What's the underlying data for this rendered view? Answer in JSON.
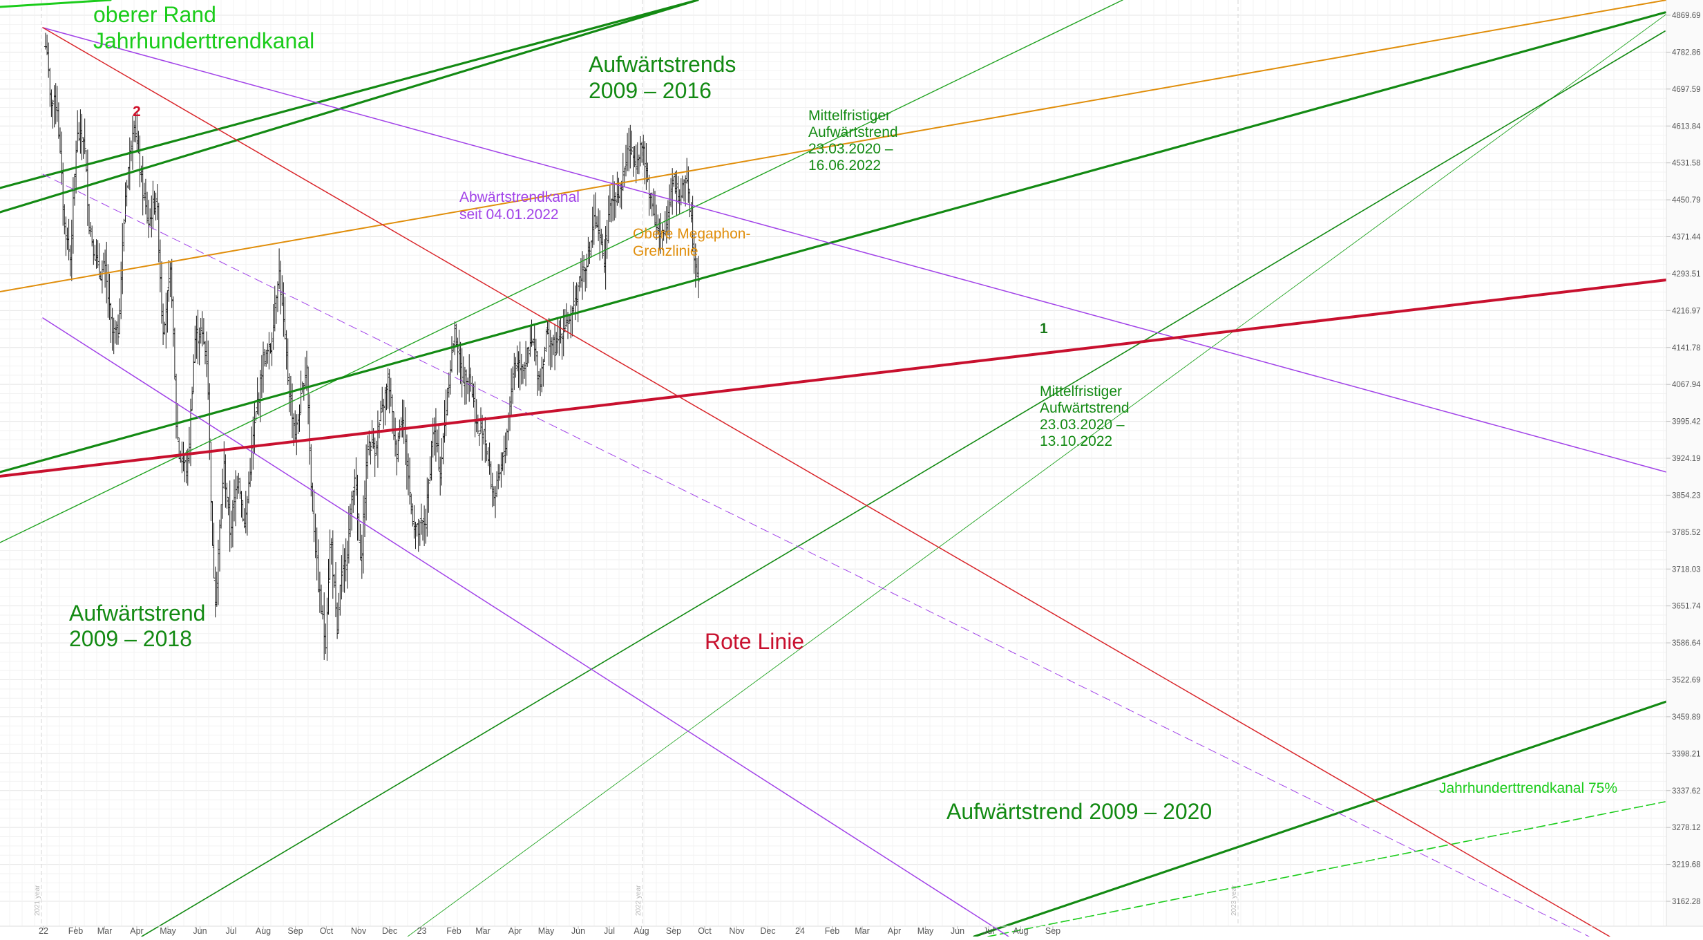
{
  "chart_data": {
    "type": "line",
    "subtype": "ohlc-price-chart-with-trendlines",
    "grid": true,
    "y_scale": "log",
    "y_tick_labels": [
      "4869.69",
      "4782.86",
      "4697.59",
      "4613.84",
      "4531.58",
      "4450.79",
      "4371.44",
      "4293.51",
      "4216.97",
      "4141.78",
      "4067.94",
      "3995.42",
      "3924.19",
      "3854.23",
      "3785.52",
      "3718.03",
      "3651.74",
      "3586.64",
      "3522.69",
      "3459.89",
      "3398.21",
      "3337.62",
      "3278.12",
      "3219.68",
      "3162.28"
    ],
    "x_tick_labels": [
      "22",
      "Feb",
      "Mar",
      "Apr",
      "May",
      "Jun",
      "Jul",
      "Aug",
      "Sep",
      "Oct",
      "Nov",
      "Dec",
      "23",
      "Feb",
      "Mar",
      "Apr",
      "May",
      "Jun",
      "Jul",
      "Aug",
      "Sep",
      "Oct",
      "Nov",
      "Dec",
      "24",
      "Feb",
      "Mar",
      "Apr",
      "May",
      "Jun",
      "Jul",
      "Aug",
      "Sep"
    ],
    "year_separators": [
      "2021 year",
      "2022 year",
      "2023 year"
    ],
    "colors": {
      "grid": "#ececec",
      "price": "#1a1a1a",
      "green_bright": "#1bcc1b",
      "green_dark": "#138a13",
      "green_mid": "#22a322",
      "orange": "#e08e0b",
      "purple": "#a142e8",
      "red": "#d9252a",
      "crimson": "#c8102e",
      "marker_red": "#d0102a",
      "marker_green": "#1a7a1a"
    },
    "annotations": [
      {
        "id": "oberer-rand",
        "lines": [
          "oberer Rand",
          "Jahrhunderttrendkanal"
        ],
        "color": "#1bcc1b"
      },
      {
        "id": "aufwaertstrends-2009-2016",
        "lines": [
          "Aufwärtstrends",
          "2009 – 2016"
        ],
        "color": "#138a13"
      },
      {
        "id": "mittelfristiger-16-06",
        "lines": [
          "Mittelfristiger",
          "Aufwärtstrend",
          "23.03.2020 –",
          "16.06.2022"
        ],
        "color": "#138a13"
      },
      {
        "id": "abwaertstrendkanal",
        "lines": [
          "Abwärtstrendkanal",
          "seit 04.01.2022"
        ],
        "color": "#a142e8"
      },
      {
        "id": "obere-megaphon",
        "lines": [
          "Obere Megaphon-",
          "Grenzlinie"
        ],
        "color": "#e08e0b"
      },
      {
        "id": "mittelfristiger-13-10",
        "lines": [
          "Mittelfristiger",
          "Aufwärtstrend",
          "23.03.2020 –",
          "13.10.2022"
        ],
        "color": "#138a13"
      },
      {
        "id": "aufwaertstrend-2009-2018",
        "lines": [
          "Aufwärtstrend",
          "2009 – 2018"
        ],
        "color": "#138a13"
      },
      {
        "id": "rote-linie",
        "lines": [
          "Rote Linie"
        ],
        "color": "#c8102e"
      },
      {
        "id": "aufwaertstrend-2009-2020",
        "lines": [
          "Aufwärtstrend 2009 – 2020"
        ],
        "color": "#138a13"
      },
      {
        "id": "jahrhunderttrendkanal-75",
        "lines": [
          "Jahrhunderttrendkanal 75%"
        ],
        "color": "#1bcc1b"
      }
    ],
    "markers": [
      {
        "id": "marker-2",
        "text": "2",
        "color": "#d0102a"
      },
      {
        "id": "marker-1",
        "text": "1",
        "color": "#1a7a1a"
      }
    ],
    "price_path": [
      [
        "2022-01-03",
        4796
      ],
      [
        "2022-01-04",
        4805
      ],
      [
        "2022-01-07",
        4677
      ],
      [
        "2022-01-14",
        4662
      ],
      [
        "2022-01-21",
        4398
      ],
      [
        "2022-01-27",
        4326
      ],
      [
        "2022-02-02",
        4590
      ],
      [
        "2022-02-09",
        4587
      ],
      [
        "2022-02-14",
        4402
      ],
      [
        "2022-02-18",
        4350
      ],
      [
        "2022-02-24",
        4290
      ],
      [
        "2022-03-01",
        4307
      ],
      [
        "2022-03-08",
        4171
      ],
      [
        "2022-03-14",
        4173
      ],
      [
        "2022-03-21",
        4461
      ],
      [
        "2022-03-29",
        4632
      ],
      [
        "2022-04-06",
        4481
      ],
      [
        "2022-04-12",
        4397
      ],
      [
        "2022-04-20",
        4460
      ],
      [
        "2022-04-26",
        4176
      ],
      [
        "2022-05-04",
        4300
      ],
      [
        "2022-05-09",
        3991
      ],
      [
        "2022-05-12",
        3930
      ],
      [
        "2022-05-20",
        3901
      ],
      [
        "2022-05-27",
        4158
      ],
      [
        "2022-06-02",
        4176
      ],
      [
        "2022-06-08",
        4115
      ],
      [
        "2022-06-13",
        3750
      ],
      [
        "2022-06-16",
        3667
      ],
      [
        "2022-06-24",
        3911
      ],
      [
        "2022-06-30",
        3785
      ],
      [
        "2022-07-08",
        3899
      ],
      [
        "2022-07-14",
        3790
      ],
      [
        "2022-07-22",
        3961
      ],
      [
        "2022-08-01",
        4118
      ],
      [
        "2022-08-08",
        4140
      ],
      [
        "2022-08-16",
        4305
      ],
      [
        "2022-08-23",
        4128
      ],
      [
        "2022-08-26",
        4058
      ],
      [
        "2022-09-01",
        3966
      ],
      [
        "2022-09-12",
        4110
      ],
      [
        "2022-09-16",
        3873
      ],
      [
        "2022-09-23",
        3693
      ],
      [
        "2022-09-30",
        3585
      ],
      [
        "2022-10-05",
        3783
      ],
      [
        "2022-10-12",
        3577
      ],
      [
        "2022-10-13",
        3669
      ],
      [
        "2022-10-21",
        3752
      ],
      [
        "2022-10-28",
        3901
      ],
      [
        "2022-11-03",
        3720
      ],
      [
        "2022-11-10",
        3956
      ],
      [
        "2022-11-17",
        3946
      ],
      [
        "2022-11-30",
        4080
      ],
      [
        "2022-12-07",
        3933
      ],
      [
        "2022-12-13",
        4019
      ],
      [
        "2022-12-22",
        3822
      ],
      [
        "2022-12-28",
        3783
      ],
      [
        "2023-01-05",
        3808
      ],
      [
        "2023-01-12",
        3983
      ],
      [
        "2023-01-19",
        3898
      ],
      [
        "2023-01-26",
        4060
      ],
      [
        "2023-02-02",
        4179
      ],
      [
        "2023-02-09",
        4081
      ],
      [
        "2023-02-16",
        4090
      ],
      [
        "2023-02-24",
        3970
      ],
      [
        "2023-03-02",
        3981
      ],
      [
        "2023-03-10",
        3861
      ],
      [
        "2023-03-13",
        3855
      ],
      [
        "2023-03-22",
        3937
      ],
      [
        "2023-03-31",
        4109
      ],
      [
        "2023-04-10",
        4110
      ],
      [
        "2023-04-18",
        4154
      ],
      [
        "2023-04-25",
        4071
      ],
      [
        "2023-05-01",
        4167
      ],
      [
        "2023-05-10",
        4137
      ],
      [
        "2023-05-19",
        4191
      ],
      [
        "2023-05-26",
        4205
      ],
      [
        "2023-06-02",
        4282
      ],
      [
        "2023-06-12",
        4338
      ],
      [
        "2023-06-16",
        4409
      ],
      [
        "2023-06-26",
        4328
      ],
      [
        "2023-07-03",
        4455
      ],
      [
        "2023-07-12",
        4472
      ],
      [
        "2023-07-19",
        4565
      ],
      [
        "2023-07-27",
        4537
      ],
      [
        "2023-08-01",
        4576
      ],
      [
        "2023-08-09",
        4467
      ],
      [
        "2023-08-18",
        4369
      ],
      [
        "2023-08-24",
        4376
      ],
      [
        "2023-08-31",
        4507
      ],
      [
        "2023-09-07",
        4451
      ],
      [
        "2023-09-14",
        4505
      ],
      [
        "2023-09-21",
        4330
      ],
      [
        "2023-09-26",
        4273
      ]
    ]
  }
}
